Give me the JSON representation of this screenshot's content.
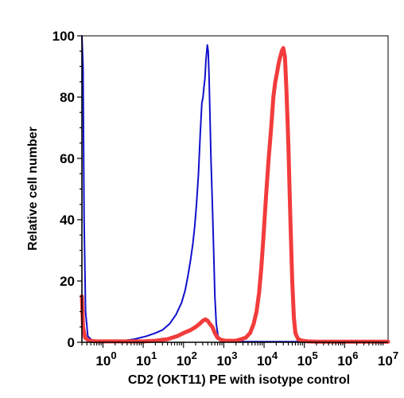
{
  "chart_data": {
    "type": "line",
    "title": "",
    "xlabel": "CD2 (OKT11) PE with isotype control",
    "ylabel": "Relative cell number",
    "x_scale": "log",
    "xlim": [
      0.3,
      12000000
    ],
    "ylim": [
      0,
      100
    ],
    "x_tick_labels": [
      {
        "value": 1,
        "base": "10",
        "exp": "0"
      },
      {
        "value": 10,
        "base": "10",
        "exp": "1"
      },
      {
        "value": 100,
        "base": "10",
        "exp": "2"
      },
      {
        "value": 1000,
        "base": "10",
        "exp": "3"
      },
      {
        "value": 10000,
        "base": "10",
        "exp": "4"
      },
      {
        "value": 100000,
        "base": "10",
        "exp": "5"
      },
      {
        "value": 1000000,
        "base": "10",
        "exp": "6"
      },
      {
        "value": 10000000,
        "base": "10",
        "exp": "7"
      }
    ],
    "y_ticks": [
      0,
      20,
      40,
      60,
      80,
      100
    ],
    "y_tick_labels": [
      "0",
      "20",
      "40",
      "60",
      "80",
      "100"
    ],
    "grid": false,
    "legend": "none",
    "series": [
      {
        "color": "#1010cc",
        "x": [
          0.3,
          0.32,
          0.34,
          0.37,
          0.42,
          0.55,
          0.8,
          1.5,
          3,
          6,
          12,
          20,
          30,
          45,
          65,
          90,
          110,
          130,
          150,
          170,
          190,
          210,
          235,
          260,
          285,
          305,
          320,
          340,
          360,
          390,
          410,
          430,
          450,
          480,
          520,
          560,
          600,
          650,
          720,
          850,
          1100,
          1600,
          2500,
          5000,
          10000,
          50000,
          1000000,
          12000000
        ],
        "y": [
          100,
          90,
          40,
          10,
          2,
          0.5,
          0.3,
          0.3,
          0.5,
          1,
          2,
          3,
          4,
          6,
          9,
          13,
          17,
          22,
          27,
          32,
          38,
          45,
          55,
          68,
          78,
          80,
          83,
          86,
          92,
          97,
          95,
          87,
          76,
          60,
          45,
          30,
          15,
          6,
          2,
          1,
          0.5,
          0.3,
          0.2,
          0.2,
          0.2,
          0.2,
          0.2,
          0.2
        ]
      },
      {
        "color": "#f23c3c",
        "x": [
          0.3,
          0.32,
          0.36,
          0.45,
          0.7,
          1,
          3,
          10,
          20,
          40,
          70,
          100,
          150,
          200,
          250,
          300,
          350,
          400,
          450,
          520,
          600,
          700,
          850,
          1100,
          1500,
          2000,
          2700,
          3500,
          4500,
          5500,
          6500,
          7500,
          8500,
          9500,
          10500,
          11500,
          13000,
          15000,
          17000,
          19000,
          21000,
          23000,
          25000,
          27500,
          30000,
          33000,
          36000,
          40000,
          45000,
          50000,
          55000,
          60000,
          70000,
          90000,
          120000,
          200000,
          1000000,
          12000000
        ],
        "y": [
          15,
          5,
          1.5,
          0.5,
          0.3,
          0.3,
          0.3,
          0.3,
          0.5,
          1,
          2,
          3,
          4,
          5,
          6,
          7,
          7.5,
          7,
          6,
          5,
          3,
          1.5,
          0.8,
          0.5,
          0.5,
          0.5,
          1,
          1.5,
          3,
          6,
          10,
          16,
          24,
          33,
          42,
          50,
          60,
          70,
          80,
          85,
          88,
          91,
          93,
          95,
          96,
          93,
          82,
          65,
          40,
          20,
          8,
          3,
          1,
          0.5,
          0.3,
          0.2,
          0.2,
          0.2
        ]
      }
    ]
  }
}
